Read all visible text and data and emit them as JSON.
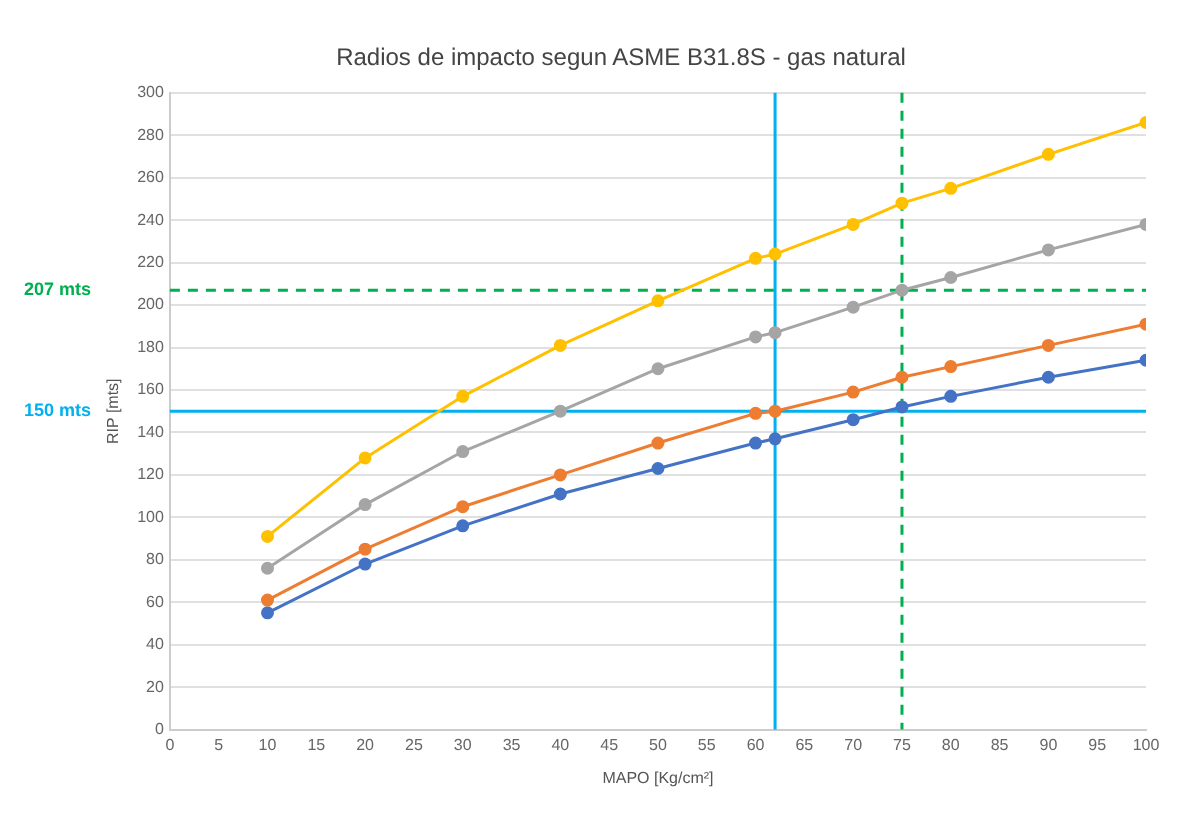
{
  "chart_data": {
    "type": "line",
    "title": "Radios de impacto segun ASME B31.8S - gas natural",
    "xlabel": "MAPO [Kg/cm²]",
    "ylabel": "RIP [mts]",
    "xlim": [
      0,
      100
    ],
    "xticks": [
      0,
      5,
      10,
      15,
      20,
      25,
      30,
      35,
      40,
      45,
      50,
      55,
      60,
      65,
      70,
      75,
      80,
      85,
      90,
      95,
      100
    ],
    "ylim": [
      0,
      300
    ],
    "yticks": [
      0,
      20,
      40,
      60,
      80,
      100,
      120,
      140,
      160,
      180,
      200,
      220,
      240,
      260,
      280,
      300
    ],
    "grid": "y",
    "legend": false,
    "marker": "circle",
    "line_style": "solid",
    "x": [
      10,
      20,
      30,
      40,
      50,
      60,
      62,
      70,
      75,
      80,
      90,
      100
    ],
    "series": [
      {
        "color": "#ffc000",
        "values": [
          91,
          128,
          157,
          181,
          202,
          222,
          224,
          238,
          248,
          255,
          271,
          286
        ]
      },
      {
        "color": "#a5a5a5",
        "values": [
          76,
          106,
          131,
          150,
          170,
          185,
          187,
          199,
          207,
          213,
          226,
          238
        ]
      },
      {
        "color": "#ed7d31",
        "values": [
          61,
          85,
          105,
          120,
          135,
          149,
          150,
          159,
          166,
          171,
          181,
          191
        ]
      },
      {
        "color": "#4472c4",
        "values": [
          55,
          78,
          96,
          111,
          123,
          135,
          137,
          146,
          152,
          157,
          166,
          174
        ]
      }
    ],
    "ref_lines": [
      {
        "axis": "y",
        "value": 207,
        "label": "207 mts",
        "color": "#00b050",
        "line_style": "dashed"
      },
      {
        "axis": "y",
        "value": 150,
        "label": "150 mts",
        "color": "#00b0f0",
        "line_style": "solid"
      },
      {
        "axis": "x",
        "value": 75,
        "color": "#00b050",
        "line_style": "dashed"
      },
      {
        "axis": "x",
        "value": 62,
        "color": "#00b0f0",
        "line_style": "solid"
      }
    ]
  }
}
